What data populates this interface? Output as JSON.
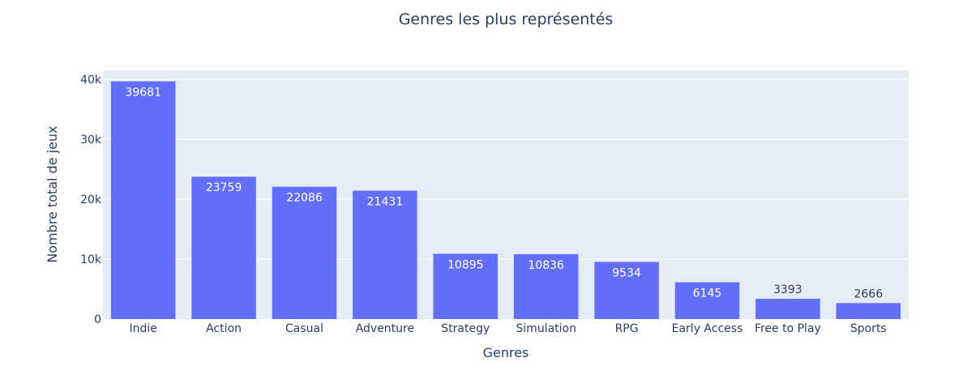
{
  "chart_data": {
    "type": "bar",
    "title": "Genres les plus représentés",
    "xlabel": "Genres",
    "ylabel": "Nombre total de jeux",
    "categories": [
      "Indie",
      "Action",
      "Casual",
      "Adventure",
      "Strategy",
      "Simulation",
      "RPG",
      "Early Access",
      "Free to Play",
      "Sports"
    ],
    "values": [
      39681,
      23759,
      22086,
      21431,
      10895,
      10836,
      9534,
      6145,
      3393,
      2666
    ],
    "ylim": [
      0,
      41500
    ],
    "yticks": [
      0,
      10000,
      20000,
      30000,
      40000
    ],
    "ytick_labels": [
      "0",
      "10k",
      "20k",
      "30k",
      "40k"
    ],
    "grid": true,
    "legend": "none",
    "colors": {
      "bar": "#636efa",
      "plot_bg": "#e5ecf6",
      "grid": "#ffffff",
      "text": "#2a3f5f",
      "label_inside": "#ffffff",
      "label_outside": "#2a3f5f"
    }
  }
}
